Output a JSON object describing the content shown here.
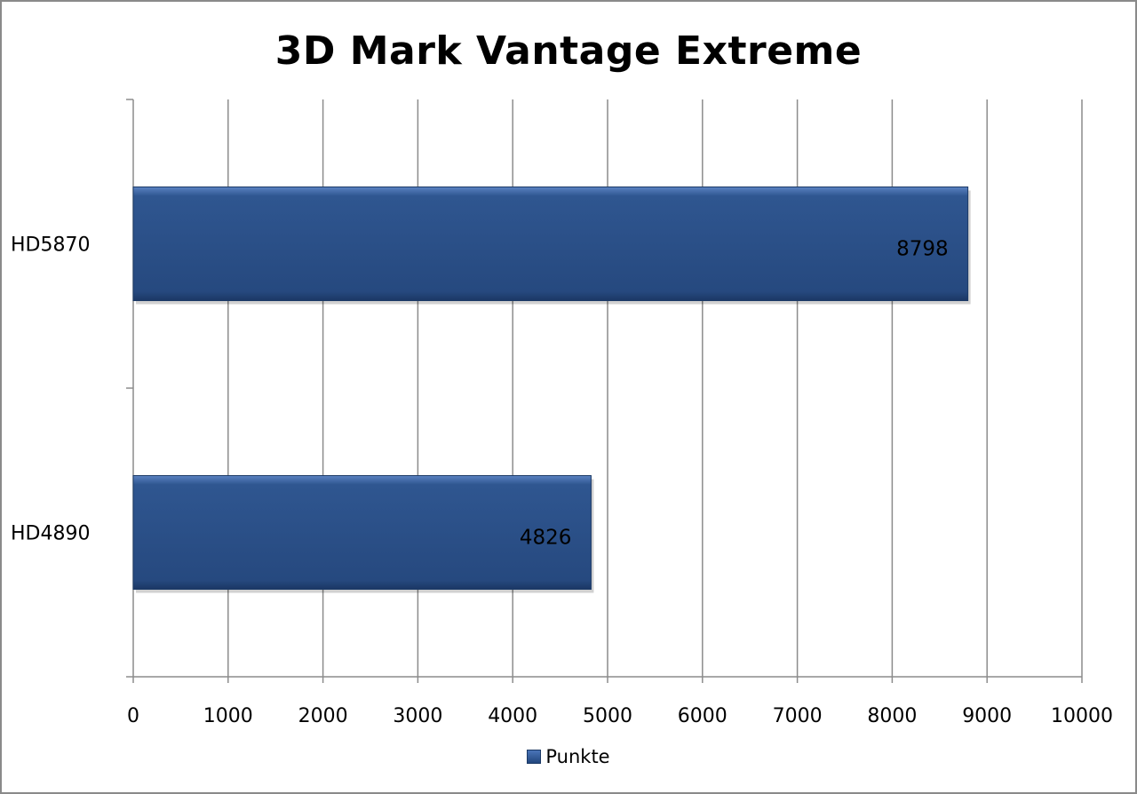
{
  "chart_data": {
    "type": "bar",
    "orientation": "horizontal",
    "title": "3D Mark Vantage Extreme",
    "categories": [
      "HD5870",
      "HD4890"
    ],
    "series": [
      {
        "name": "Punkte",
        "values": [
          8798,
          4826
        ],
        "color": "#2a5088"
      }
    ],
    "data_labels": [
      "8798",
      "4826"
    ],
    "xlim": [
      0,
      10000
    ],
    "xticks": [
      0,
      1000,
      2000,
      3000,
      4000,
      5000,
      6000,
      7000,
      8000,
      9000,
      10000
    ],
    "xtick_labels": [
      "0",
      "1000",
      "2000",
      "3000",
      "4000",
      "5000",
      "6000",
      "7000",
      "8000",
      "9000",
      "10000"
    ],
    "grid": "vertical",
    "legend_position": "bottom"
  }
}
